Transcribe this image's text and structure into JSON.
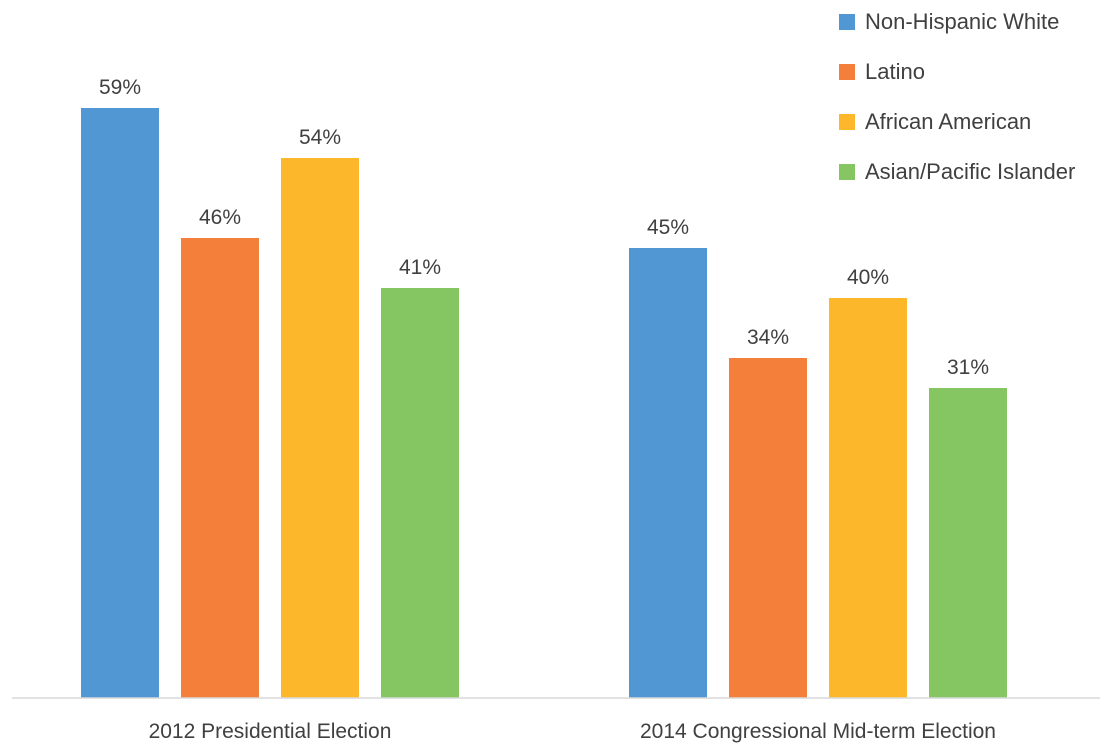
{
  "chart_data": {
    "type": "bar",
    "title": "",
    "xlabel": "",
    "ylabel": "",
    "ylim": [
      0,
      59
    ],
    "grid": false,
    "legend_position": "top-right",
    "categories": [
      "2012 Presidential Election",
      "2014 Congressional Mid-term Election"
    ],
    "series": [
      {
        "name": "Non-Hispanic White",
        "color": "#5097D3",
        "values": [
          59,
          45
        ],
        "labels": [
          "59%",
          "45%"
        ]
      },
      {
        "name": "Latino",
        "color": "#F47F3B",
        "values": [
          46,
          34
        ],
        "labels": [
          "46%",
          "34%"
        ]
      },
      {
        "name": "African American",
        "color": "#FCB72B",
        "values": [
          54,
          40
        ],
        "labels": [
          "54%",
          "40%"
        ]
      },
      {
        "name": "Asian/Pacific Islander",
        "color": "#86C662",
        "values": [
          41,
          31
        ],
        "labels": [
          "41%",
          "31%"
        ]
      }
    ]
  }
}
